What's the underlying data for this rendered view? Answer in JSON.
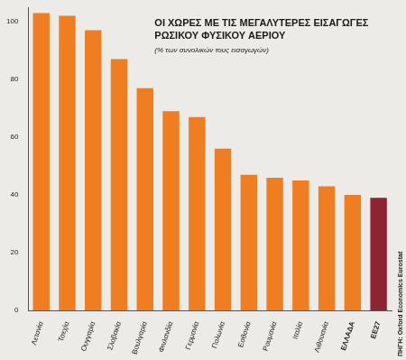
{
  "chart_data": {
    "type": "bar",
    "title": "ΟΙ ΧΩΡΕΣ ΜΕ ΤΙΣ ΜΕΓΑΛΥΤΕΡΕΣ ΕΙΣΑΓΩΓΕΣ ΡΩΣΙΚΟΥ ΦΥΣΙΚΟΥ ΑΕΡΙΟΥ",
    "subtitle": "(% των συνολικών τους εισαγωγών)",
    "source": "ΠΗΓΗ: Oxford Economics Eurostat",
    "categories": [
      "Λετονία",
      "Τσεχία",
      "Ουγγαρία",
      "Σλοβακία",
      "Βουλγαρία",
      "Φινλανδία",
      "Γερμανία",
      "Πολωνία",
      "Εσθονία",
      "Ρουμανία",
      "Ιταλία",
      "Λιθουανία",
      "ΕΛΛΑΔΑ",
      "ΕΕ27"
    ],
    "values": [
      103,
      102,
      97,
      87,
      77,
      69,
      67,
      56,
      47,
      46,
      45,
      43,
      40,
      39
    ],
    "colors": [
      "#f07d1f",
      "#f07d1f",
      "#f07d1f",
      "#f07d1f",
      "#f07d1f",
      "#f07d1f",
      "#f07d1f",
      "#f07d1f",
      "#f07d1f",
      "#f07d1f",
      "#f07d1f",
      "#f07d1f",
      "#f07d1f",
      "#8c2433"
    ],
    "ylim": [
      0,
      105
    ],
    "yticks": [
      0,
      20,
      40,
      60,
      80,
      100
    ],
    "grid": false
  }
}
